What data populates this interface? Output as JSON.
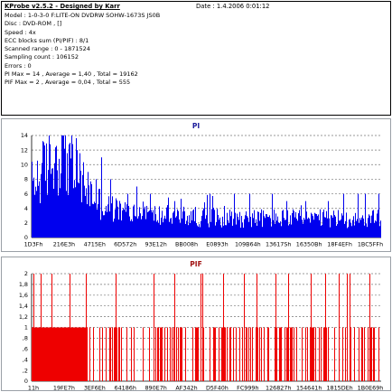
{
  "info": {
    "title": "KProbe v2.5.2 - Designed by Karr",
    "date": "Date : 1.4.2006 0:01:12",
    "rows": [
      "Model : 1-0-3-0 F:LITE-ON DVDRW SOHW-1673S JS0B",
      "Disc : DVD-ROM , []",
      "Speed : 4x",
      "ECC blocks sum (PI/PIF) : 8/1",
      "Scanned range : 0 - 1871524",
      "Sampling count : 106152",
      "Errors : 0",
      "PI Max = 14 , Average = 1,40 , Total = 19162",
      "PIF Max = 2 , Average = 0,04 , Total = 555"
    ]
  },
  "colors": {
    "pi_bars": "#0000ee",
    "pif_bars": "#ee0000",
    "pi_title": "#1a1a9a",
    "pif_title": "#a01010",
    "grid": "#777777"
  },
  "chart_data": [
    {
      "type": "bar",
      "title": "PI",
      "xlabel": "",
      "ylabel": "",
      "ylim": [
        0,
        14
      ],
      "yticks": [
        0,
        2,
        4,
        6,
        8,
        10,
        12,
        14
      ],
      "grid": true,
      "x_tick_labels": [
        "1D3Fh",
        "216E3h",
        "4715Eh",
        "6D572h",
        "93E12h",
        "BB008h",
        "E0893h",
        "109B64h",
        "13617Sh",
        "16350Bh",
        "18F4EFh",
        "1BC5FFh"
      ],
      "profile": [
        {
          "x": 0.0,
          "y": 8
        },
        {
          "x": 0.03,
          "y": 10
        },
        {
          "x": 0.06,
          "y": 12
        },
        {
          "x": 0.08,
          "y": 13
        },
        {
          "x": 0.1,
          "y": 12
        },
        {
          "x": 0.13,
          "y": 10
        },
        {
          "x": 0.16,
          "y": 7
        },
        {
          "x": 0.2,
          "y": 5
        },
        {
          "x": 0.25,
          "y": 4
        },
        {
          "x": 0.35,
          "y": 3.4
        },
        {
          "x": 0.55,
          "y": 3.0
        },
        {
          "x": 1.0,
          "y": 2.8
        }
      ],
      "spikes": [
        {
          "x": 0.085,
          "y": 14
        },
        {
          "x": 0.095,
          "y": 14
        },
        {
          "x": 0.11,
          "y": 13
        },
        {
          "x": 0.13,
          "y": 12
        },
        {
          "x": 0.16,
          "y": 9
        },
        {
          "x": 0.185,
          "y": 8
        },
        {
          "x": 0.2,
          "y": 11
        },
        {
          "x": 0.225,
          "y": 8
        },
        {
          "x": 0.275,
          "y": 6
        },
        {
          "x": 0.3,
          "y": 7
        },
        {
          "x": 0.34,
          "y": 6
        },
        {
          "x": 0.41,
          "y": 5
        },
        {
          "x": 0.51,
          "y": 6
        },
        {
          "x": 0.58,
          "y": 6
        },
        {
          "x": 0.625,
          "y": 6
        },
        {
          "x": 0.69,
          "y": 6
        },
        {
          "x": 0.73,
          "y": 5
        },
        {
          "x": 0.785,
          "y": 5
        },
        {
          "x": 0.85,
          "y": 5
        },
        {
          "x": 0.895,
          "y": 6
        },
        {
          "x": 0.935,
          "y": 6
        },
        {
          "x": 0.955,
          "y": 6
        },
        {
          "x": 0.995,
          "y": 6
        }
      ]
    },
    {
      "type": "bar",
      "title": "PIF",
      "xlabel": "",
      "ylabel": "",
      "ylim": [
        0,
        2
      ],
      "yticks": [
        0,
        0.2,
        0.4,
        0.6,
        0.8,
        1,
        1.2,
        1.4,
        1.6,
        1.8,
        2
      ],
      "ytick_labels": [
        "0",
        ",2",
        ",4",
        ",6",
        ",8",
        "1",
        "1,2",
        "1,4",
        "1,6",
        "1,8",
        "2"
      ],
      "grid": true,
      "x_tick_labels": [
        "11h",
        "19FE7h",
        "3EF6Eh",
        "64186h",
        "890E7h",
        "AF342h",
        "D5F40h",
        "FC999h",
        "126827h",
        "154641h",
        "1815DEh",
        "1B0E69h"
      ],
      "ones_dense_range": [
        0.0,
        0.16
      ],
      "two_positions": [
        0.005,
        0.027,
        0.058,
        0.11,
        0.155,
        0.24,
        0.35,
        0.41,
        0.485,
        0.49,
        0.55,
        0.61,
        0.645,
        0.7,
        0.735,
        0.8,
        0.842,
        0.88,
        0.905,
        0.912,
        0.97
      ],
      "ones_sparse_density": 0.34
    }
  ]
}
